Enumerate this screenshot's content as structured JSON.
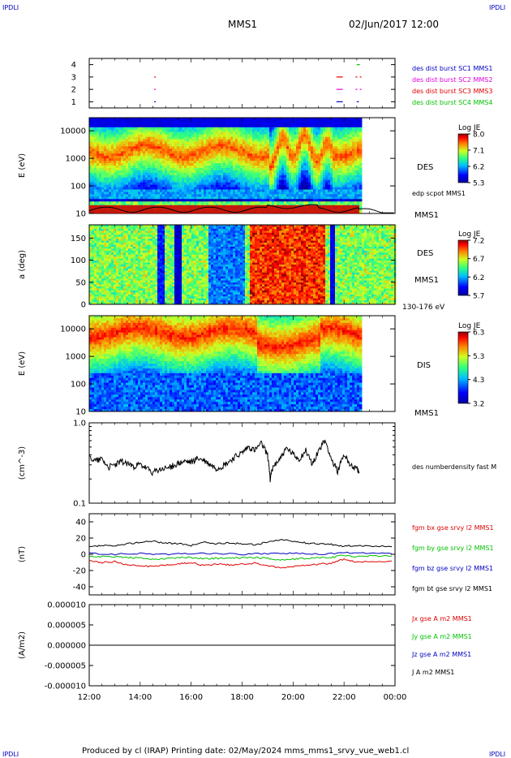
{
  "header": {
    "corner_tl": "IPDLI",
    "corner_tr": "IPDLI",
    "mission": "MMS1",
    "date": "02/Jun/2017 12:00"
  },
  "footer": {
    "text": "Produced by cl (IRAP)   Printing date: 02/May/2024   mms_mms1_srvy_vue_web1.cl",
    "corner_bl": "IPDLI",
    "corner_br": "IPDLI"
  },
  "colors": {
    "black": "#000000",
    "red": "#e00000",
    "green": "#00c000",
    "blue": "#0000c0",
    "magenta": "#e000e0",
    "dark_red": "#c00000",
    "bright_green": "#00d000"
  },
  "chart_data": [
    {
      "type": "scatter",
      "name": "burst-availability",
      "ylim": [
        0.5,
        4.5
      ],
      "yticks": [
        "1",
        "2",
        "3",
        "4"
      ],
      "labels": [
        {
          "text": "des dist burst SC1 MMS1",
          "color": "#0000c0"
        },
        {
          "text": "des dist burst SC2 MMS2",
          "color": "#e000e0"
        },
        {
          "text": "des dist burst SC3 MMS3",
          "color": "#e00000"
        },
        {
          "text": "des dist burst SC4 MMS4",
          "color": "#00c000"
        }
      ],
      "segments": [
        {
          "sc": 1,
          "t0": 14.55,
          "t1": 14.58,
          "color": "#0000c0"
        },
        {
          "sc": 1,
          "t0": 21.7,
          "t1": 21.95,
          "color": "#0000c0"
        },
        {
          "sc": 1,
          "t0": 22.5,
          "t1": 22.58,
          "color": "#0000c0"
        },
        {
          "sc": 2,
          "t0": 14.55,
          "t1": 14.58,
          "color": "#e000e0"
        },
        {
          "sc": 2,
          "t0": 21.7,
          "t1": 21.95,
          "color": "#e000e0"
        },
        {
          "sc": 2,
          "t0": 22.45,
          "t1": 22.52,
          "color": "#e000e0"
        },
        {
          "sc": 2,
          "t0": 22.62,
          "t1": 22.66,
          "color": "#e000e0"
        },
        {
          "sc": 3,
          "t0": 14.55,
          "t1": 14.58,
          "color": "#e00000"
        },
        {
          "sc": 3,
          "t0": 21.7,
          "t1": 21.95,
          "color": "#e00000"
        },
        {
          "sc": 3,
          "t0": 22.45,
          "t1": 22.52,
          "color": "#e00000"
        },
        {
          "sc": 3,
          "t0": 22.62,
          "t1": 22.66,
          "color": "#e00000"
        },
        {
          "sc": 4,
          "t0": 22.5,
          "t1": 22.62,
          "color": "#00c000"
        }
      ]
    },
    {
      "type": "heatmap",
      "name": "des-energy-spectrogram",
      "ylabel": "E (eV)",
      "yscale": "log",
      "ylim": [
        10,
        30000
      ],
      "yticks": [
        "10",
        "100",
        "1000",
        "10000"
      ],
      "instrument": "DES",
      "sc_label": "MMS1",
      "overlay_label": "edp scpot MMS1",
      "colorbar": {
        "title": "Log JE",
        "ticks": [
          "8.0",
          "7.1",
          "6.2",
          "5.3"
        ],
        "min": 5.3,
        "max": 8.0
      },
      "data_end_hour": 22.6
    },
    {
      "type": "heatmap",
      "name": "des-pitch-angle",
      "ylabel": "a (deg)",
      "ylim": [
        0,
        180
      ],
      "yticks": [
        "0",
        "50",
        "100",
        "150"
      ],
      "instrument": "DES",
      "sc_label": "MMS1",
      "energy_range": "130-176 eV",
      "colorbar": {
        "title": "Log JE",
        "ticks": [
          "7.2",
          "6.7",
          "6.2",
          "5.7"
        ],
        "min": 5.7,
        "max": 7.2
      }
    },
    {
      "type": "heatmap",
      "name": "dis-energy-spectrogram",
      "ylabel": "E (eV)",
      "yscale": "log",
      "ylim": [
        10,
        30000
      ],
      "yticks": [
        "10",
        "100",
        "1000",
        "10000"
      ],
      "instrument": "DIS",
      "sc_label": "MMS1",
      "colorbar": {
        "title": "Log JE",
        "ticks": [
          "6.3",
          "5.3",
          "4.3",
          "3.2"
        ],
        "min": 3.2,
        "max": 6.3
      },
      "data_end_hour": 22.6
    },
    {
      "type": "line",
      "name": "density",
      "ylabel": "(cm^-3)",
      "yscale": "log",
      "ylim": [
        0.1,
        1.0
      ],
      "yticks": [
        "1.0",
        "0.1"
      ],
      "series": [
        {
          "name": "des numberdensity fast M",
          "color": "#000000",
          "x": [
            12.0,
            12.25,
            12.5,
            12.75,
            13.0,
            13.25,
            13.5,
            13.75,
            14.0,
            14.25,
            14.5,
            14.75,
            15.0,
            15.25,
            15.5,
            15.75,
            16.0,
            16.25,
            16.5,
            16.75,
            17.0,
            17.25,
            17.5,
            17.75,
            18.0,
            18.25,
            18.5,
            18.75,
            19.0,
            19.1,
            19.25,
            19.5,
            19.75,
            20.0,
            20.25,
            20.5,
            20.75,
            21.0,
            21.25,
            21.5,
            21.75,
            22.0,
            22.25,
            22.5,
            22.6
          ],
          "y": [
            0.38,
            0.34,
            0.36,
            0.28,
            0.3,
            0.33,
            0.31,
            0.29,
            0.3,
            0.27,
            0.24,
            0.26,
            0.27,
            0.29,
            0.31,
            0.33,
            0.32,
            0.36,
            0.34,
            0.3,
            0.27,
            0.29,
            0.33,
            0.38,
            0.42,
            0.5,
            0.45,
            0.55,
            0.4,
            0.2,
            0.3,
            0.36,
            0.48,
            0.4,
            0.35,
            0.45,
            0.3,
            0.45,
            0.6,
            0.35,
            0.25,
            0.4,
            0.3,
            0.27,
            0.23
          ]
        }
      ]
    },
    {
      "type": "line",
      "name": "magnetic-field",
      "ylabel": "(nT)",
      "ylim": [
        -50,
        50
      ],
      "yticks": [
        "40",
        "20",
        "0",
        "-20",
        "-40"
      ],
      "series": [
        {
          "name": "fgm bx gse srvy l2 MMS1",
          "color": "#e00000",
          "x": [
            12.0,
            12.5,
            13.0,
            13.5,
            14.0,
            14.5,
            15.0,
            15.5,
            16.0,
            16.5,
            17.0,
            17.5,
            18.0,
            18.5,
            19.0,
            19.5,
            20.0,
            20.5,
            21.0,
            21.5,
            22.0,
            22.5,
            23.0,
            24.0
          ],
          "y": [
            -8,
            -10,
            -9,
            -13,
            -14,
            -15,
            -13,
            -12,
            -10,
            -14,
            -12,
            -13,
            -12,
            -11,
            -14,
            -17,
            -15,
            -13,
            -12,
            -11,
            -6,
            -10,
            -9,
            -9
          ]
        },
        {
          "name": "fgm by gse srvy l2 MMS1",
          "color": "#00c000",
          "x": [
            12.0,
            12.5,
            13.0,
            13.5,
            14.0,
            14.5,
            15.0,
            15.5,
            16.0,
            16.5,
            17.0,
            17.5,
            18.0,
            18.5,
            19.0,
            19.5,
            20.0,
            20.5,
            21.0,
            21.5,
            22.0,
            22.5,
            23.0,
            24.0
          ],
          "y": [
            -2,
            -3,
            -3,
            -4,
            -5,
            -6,
            -5,
            -4,
            -4,
            -5,
            -5,
            -5,
            -4,
            -4,
            -5,
            -7,
            -6,
            -5,
            -4,
            -4,
            -1,
            -3,
            -2,
            -2
          ]
        },
        {
          "name": "fgm bz gse srvy l2 MMS1",
          "color": "#0000c0",
          "x": [
            12.0,
            13.0,
            14.0,
            15.0,
            16.0,
            17.0,
            18.0,
            19.0,
            20.0,
            21.0,
            22.0,
            23.0,
            24.0
          ],
          "y": [
            1,
            0,
            1,
            0,
            1,
            1,
            0,
            1,
            1,
            0,
            2,
            1,
            1
          ]
        },
        {
          "name": "fgm bt gse srvy l2 MMS1",
          "color": "#000000",
          "x": [
            12.0,
            12.5,
            13.0,
            13.5,
            14.0,
            14.5,
            15.0,
            15.5,
            16.0,
            16.5,
            17.0,
            17.5,
            18.0,
            18.5,
            19.0,
            19.5,
            20.0,
            20.5,
            21.0,
            21.5,
            22.0,
            22.5,
            23.0,
            24.0
          ],
          "y": [
            9,
            11,
            10,
            13,
            15,
            16,
            14,
            13,
            11,
            15,
            13,
            14,
            13,
            12,
            15,
            18,
            16,
            14,
            13,
            12,
            10,
            11,
            10,
            10
          ]
        }
      ]
    },
    {
      "type": "line",
      "name": "current-density",
      "ylabel": "(A/m2)",
      "ylim": [
        -1e-05,
        1e-05
      ],
      "yticks": [
        "0.000010",
        "0.000005",
        "0.000000",
        "-0.000005",
        "-0.000010"
      ],
      "series": [
        {
          "name": "Jx gse A m2 MMS1",
          "color": "#e00000",
          "x": [
            12,
            24
          ],
          "y": [
            0,
            0
          ]
        },
        {
          "name": "Jy gse A m2 MMS1",
          "color": "#00c000",
          "x": [
            12,
            24
          ],
          "y": [
            0,
            0
          ]
        },
        {
          "name": "Jz gse A m2 MMS1",
          "color": "#0000c0",
          "x": [
            12,
            24
          ],
          "y": [
            0,
            0
          ]
        },
        {
          "name": "J A m2 MMS1",
          "color": "#000000",
          "x": [
            12,
            24
          ],
          "y": [
            0,
            0
          ]
        }
      ]
    }
  ],
  "time_axis": {
    "xlim": [
      12,
      24
    ],
    "ticks": [
      "12:00",
      "14:00",
      "16:00",
      "18:00",
      "20:00",
      "22:00",
      "00:00"
    ]
  }
}
